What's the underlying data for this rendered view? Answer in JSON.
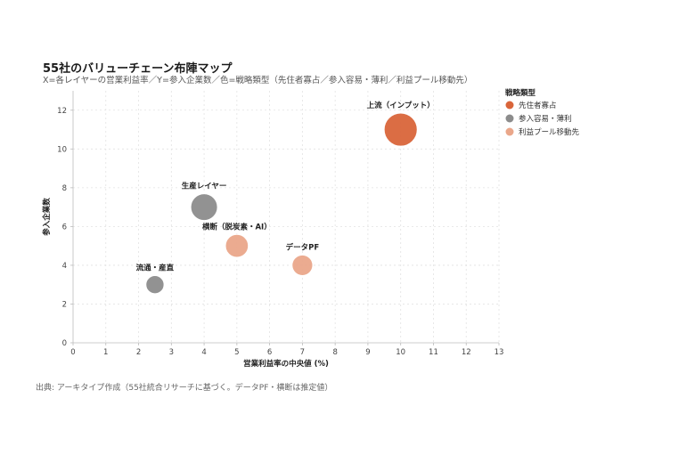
{
  "header": {
    "title": "55社のバリューチェーン布陣マップ",
    "subtitle": "X=各レイヤーの営業利益率／Y=参入企業数／色=戦略類型（先住者寡占／参入容易・薄利／利益プール移動先）"
  },
  "footer": {
    "source": "出典: アーキタイプ作成（55社統合リサーチに基づく。データPF・横断は推定値）"
  },
  "chart_data": {
    "type": "scatter",
    "xlabel": "営業利益率の中央値 (%)",
    "ylabel": "参入企業数",
    "xlim": [
      0,
      13
    ],
    "ylim": [
      0,
      13
    ],
    "x_ticks": [
      0,
      1,
      2,
      3,
      4,
      5,
      6,
      7,
      8,
      9,
      10,
      11,
      12,
      13
    ],
    "y_ticks": [
      0,
      2,
      4,
      6,
      8,
      10,
      12
    ],
    "grid": true,
    "legend": {
      "title": "戦略類型",
      "placement": "right",
      "entries": [
        {
          "name": "先住者寡占",
          "color": "#d9653a"
        },
        {
          "name": "参入容易・薄利",
          "color": "#8c8c8c"
        },
        {
          "name": "利益プール移動先",
          "color": "#eaa78a"
        }
      ]
    },
    "points": [
      {
        "label": "上流（インプット）",
        "x": 10,
        "y": 11,
        "size": 11,
        "category": "先住者寡占"
      },
      {
        "label": "生産レイヤー",
        "x": 4,
        "y": 7,
        "size": 7,
        "category": "参入容易・薄利"
      },
      {
        "label": "横断（脱炭素・AI）",
        "x": 5,
        "y": 5,
        "size": 5,
        "category": "利益プール移動先"
      },
      {
        "label": "データPF",
        "x": 7,
        "y": 4,
        "size": 4,
        "category": "利益プール移動先"
      },
      {
        "label": "流通・産直",
        "x": 2.5,
        "y": 3,
        "size": 3,
        "category": "参入容易・薄利"
      }
    ]
  }
}
